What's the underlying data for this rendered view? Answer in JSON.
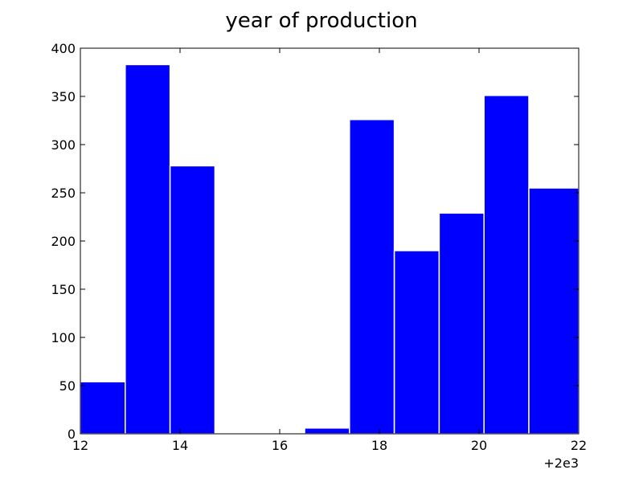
{
  "chart_data": {
    "type": "bar",
    "subtype": "histogram",
    "title": "year of production",
    "xlabel": "",
    "ylabel": "",
    "xlim": [
      12,
      22
    ],
    "ylim": [
      0,
      400
    ],
    "x_ticks": [
      12,
      14,
      16,
      18,
      20,
      22
    ],
    "y_ticks": [
      0,
      50,
      100,
      150,
      200,
      250,
      300,
      350,
      400
    ],
    "x_offset_label": "+2e3",
    "bin_edges": [
      12,
      12.9,
      13.8,
      14.7,
      15.6,
      16.5,
      17.4,
      18.3,
      19.2,
      20.1,
      21.0,
      22.0
    ],
    "values": [
      54,
      383,
      278,
      0,
      0,
      6,
      326,
      190,
      229,
      351,
      255
    ],
    "bar_color": "#0000ff",
    "bar_edge_color": "#ffffff",
    "grid": false
  }
}
